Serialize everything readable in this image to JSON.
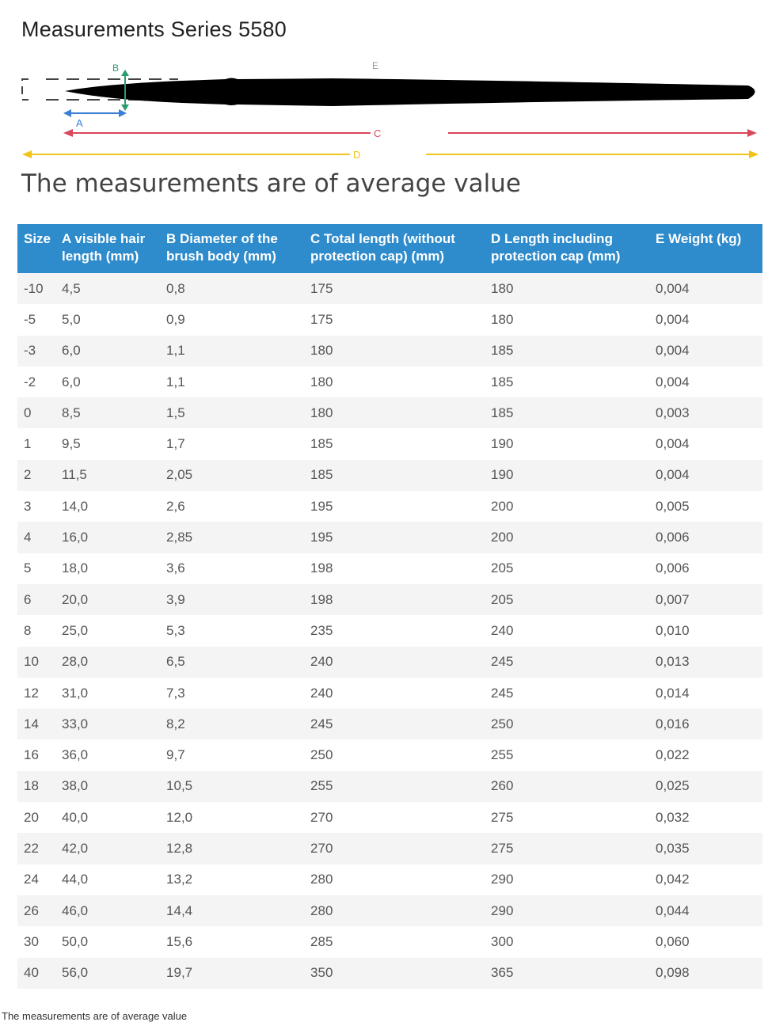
{
  "title": "Measurements Series 5580",
  "diagram": {
    "labels": {
      "a": "A",
      "b": "B",
      "c": "C",
      "d": "D",
      "e": "E"
    },
    "colors": {
      "a": "#3b7fd4",
      "b": "#2a9d6e",
      "c": "#d9475b",
      "d": "#f0c419",
      "brush": "#000000"
    }
  },
  "subtitle": "The measurements are of average value",
  "table": {
    "headers": [
      "Size",
      "A visible hair length (mm)",
      "B Diameter of the brush body (mm)",
      "C Total length (without protection cap) (mm)",
      "D Length including protection cap (mm)",
      "E Weight (kg)"
    ],
    "rows": [
      [
        "-10",
        "4,5",
        "0,8",
        "175",
        "180",
        "0,004"
      ],
      [
        "-5",
        "5,0",
        "0,9",
        "175",
        "180",
        "0,004"
      ],
      [
        "-3",
        "6,0",
        "1,1",
        "180",
        "185",
        "0,004"
      ],
      [
        "-2",
        "6,0",
        "1,1",
        "180",
        "185",
        "0,004"
      ],
      [
        "0",
        "8,5",
        "1,5",
        "180",
        "185",
        "0,003"
      ],
      [
        "1",
        "9,5",
        "1,7",
        "185",
        "190",
        "0,004"
      ],
      [
        "2",
        "11,5",
        "2,05",
        "185",
        "190",
        "0,004"
      ],
      [
        "3",
        "14,0",
        "2,6",
        "195",
        "200",
        "0,005"
      ],
      [
        "4",
        "16,0",
        "2,85",
        "195",
        "200",
        "0,006"
      ],
      [
        "5",
        "18,0",
        "3,6",
        "198",
        "205",
        "0,006"
      ],
      [
        "6",
        "20,0",
        "3,9",
        "198",
        "205",
        "0,007"
      ],
      [
        "8",
        "25,0",
        "5,3",
        "235",
        "240",
        "0,010"
      ],
      [
        "10",
        "28,0",
        "6,5",
        "240",
        "245",
        "0,013"
      ],
      [
        "12",
        "31,0",
        "7,3",
        "240",
        "245",
        "0,014"
      ],
      [
        "14",
        "33,0",
        "8,2",
        "245",
        "250",
        "0,016"
      ],
      [
        "16",
        "36,0",
        "9,7",
        "250",
        "255",
        "0,022"
      ],
      [
        "18",
        "38,0",
        "10,5",
        "255",
        "260",
        "0,025"
      ],
      [
        "20",
        "40,0",
        "12,0",
        "270",
        "275",
        "0,032"
      ],
      [
        "22",
        "42,0",
        "12,8",
        "270",
        "275",
        "0,035"
      ],
      [
        "24",
        "44,0",
        "13,2",
        "280",
        "290",
        "0,042"
      ],
      [
        "26",
        "46,0",
        "14,4",
        "280",
        "290",
        "0,044"
      ],
      [
        "30",
        "50,0",
        "15,6",
        "285",
        "300",
        "0,060"
      ],
      [
        "40",
        "56,0",
        "19,7",
        "350",
        "365",
        "0,098"
      ]
    ]
  },
  "footnote": "The measurements are of average value"
}
